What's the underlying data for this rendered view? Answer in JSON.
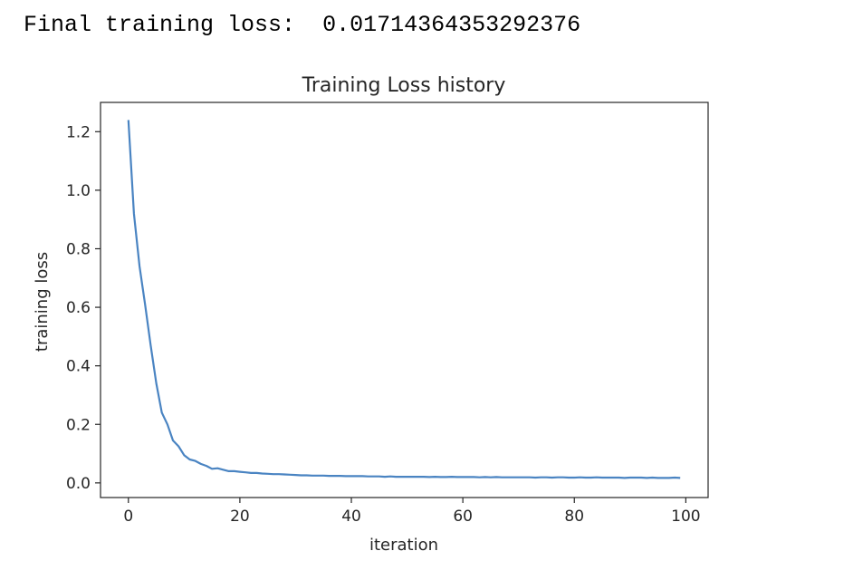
{
  "output": {
    "label": "Final training loss:",
    "value": "0.01714364353292376"
  },
  "chart_data": {
    "type": "line",
    "title": "Training Loss history",
    "xlabel": "iteration",
    "ylabel": "training loss",
    "xlim": [
      -5,
      104
    ],
    "ylim": [
      -0.05,
      1.3
    ],
    "xticks": [
      0,
      20,
      40,
      60,
      80,
      100
    ],
    "xtick_labels": [
      "0",
      "20",
      "40",
      "60",
      "80",
      "100"
    ],
    "yticks": [
      0.0,
      0.2,
      0.4,
      0.6,
      0.8,
      1.0,
      1.2
    ],
    "ytick_labels": [
      "0.0",
      "0.2",
      "0.4",
      "0.6",
      "0.8",
      "1.0",
      "1.2"
    ],
    "grid": false,
    "line_color": "#4a84c2",
    "series": [
      {
        "x": [
          0,
          1,
          2,
          3,
          4,
          5,
          6,
          7,
          8,
          9,
          10,
          11,
          12,
          13,
          14,
          15,
          16,
          17,
          18,
          19,
          20,
          21,
          22,
          23,
          24,
          25,
          26,
          27,
          28,
          29,
          30,
          31,
          32,
          33,
          34,
          35,
          36,
          37,
          38,
          39,
          40,
          41,
          42,
          43,
          44,
          45,
          46,
          47,
          48,
          49,
          50,
          51,
          52,
          53,
          54,
          55,
          56,
          57,
          58,
          59,
          60,
          61,
          62,
          63,
          64,
          65,
          66,
          67,
          68,
          69,
          70,
          71,
          72,
          73,
          74,
          75,
          76,
          77,
          78,
          79,
          80,
          81,
          82,
          83,
          84,
          85,
          86,
          87,
          88,
          89,
          90,
          91,
          92,
          93,
          94,
          95,
          96,
          97,
          98,
          99
        ],
        "values": [
          1.24,
          0.92,
          0.74,
          0.61,
          0.47,
          0.34,
          0.24,
          0.2,
          0.145,
          0.125,
          0.095,
          0.08,
          0.075,
          0.065,
          0.058,
          0.048,
          0.05,
          0.045,
          0.04,
          0.04,
          0.038,
          0.036,
          0.034,
          0.034,
          0.032,
          0.031,
          0.03,
          0.03,
          0.029,
          0.028,
          0.027,
          0.026,
          0.026,
          0.025,
          0.025,
          0.025,
          0.024,
          0.024,
          0.024,
          0.023,
          0.023,
          0.023,
          0.023,
          0.022,
          0.022,
          0.022,
          0.021,
          0.022,
          0.021,
          0.021,
          0.021,
          0.021,
          0.021,
          0.021,
          0.02,
          0.021,
          0.02,
          0.02,
          0.021,
          0.02,
          0.02,
          0.02,
          0.02,
          0.019,
          0.02,
          0.019,
          0.02,
          0.019,
          0.019,
          0.019,
          0.019,
          0.019,
          0.019,
          0.018,
          0.019,
          0.019,
          0.018,
          0.019,
          0.019,
          0.018,
          0.018,
          0.019,
          0.018,
          0.018,
          0.019,
          0.018,
          0.018,
          0.018,
          0.018,
          0.017,
          0.018,
          0.018,
          0.018,
          0.017,
          0.018,
          0.017,
          0.017,
          0.017,
          0.018,
          0.017
        ]
      }
    ]
  }
}
